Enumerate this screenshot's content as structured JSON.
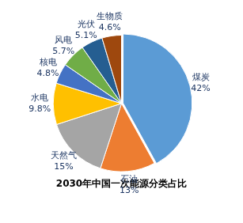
{
  "chart_data": {
    "type": "pie",
    "title": "2030年中国一次能源分类占比",
    "categories": [
      "煤炭",
      "石油",
      "天然气",
      "水电",
      "核电",
      "风电",
      "光伏",
      "生物质"
    ],
    "values": [
      42,
      13,
      15,
      9.8,
      4.8,
      5.7,
      5.1,
      4.6
    ],
    "value_labels": [
      "42%",
      "13%",
      "15%",
      "9.8%",
      "4.8%",
      "5.7%",
      "5.1%",
      "4.6%"
    ],
    "colors": [
      "#5b9bd5",
      "#ed7d31",
      "#a5a5a5",
      "#ffc000",
      "#4472c4",
      "#70ad47",
      "#255e91",
      "#9e480e"
    ],
    "data_labels": true
  }
}
